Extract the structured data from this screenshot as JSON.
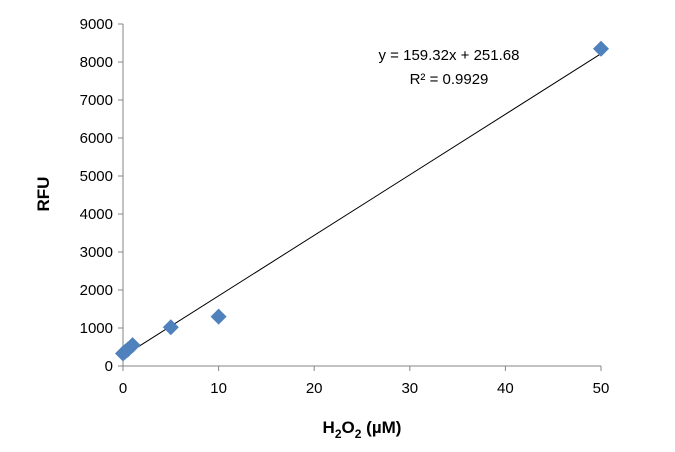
{
  "chart_data": {
    "type": "scatter",
    "xlabel": {
      "base": "H",
      "sub1": "2",
      "mid": "O",
      "sub2": "2",
      "rest": " (µM)"
    },
    "ylabel": "RFU",
    "xlim": [
      0,
      50
    ],
    "ylim": [
      0,
      9000
    ],
    "x_ticks": [
      "0",
      "10",
      "20",
      "30",
      "40",
      "50"
    ],
    "y_ticks": [
      "0",
      "1000",
      "2000",
      "3000",
      "4000",
      "5000",
      "6000",
      "7000",
      "8000",
      "9000"
    ],
    "grid": false,
    "legend": "none",
    "marker_color": "#4F81BD",
    "series": [
      {
        "x": [
          0,
          0.25,
          0.5,
          1,
          5,
          10,
          50
        ],
        "y": [
          330,
          380,
          430,
          550,
          1020,
          1300,
          8350
        ]
      }
    ],
    "trendline": {
      "slope": 159.32,
      "intercept": 251.68,
      "equation": "y = 159.32x + 251.68",
      "r_squared": "R² = 0.9929"
    }
  }
}
